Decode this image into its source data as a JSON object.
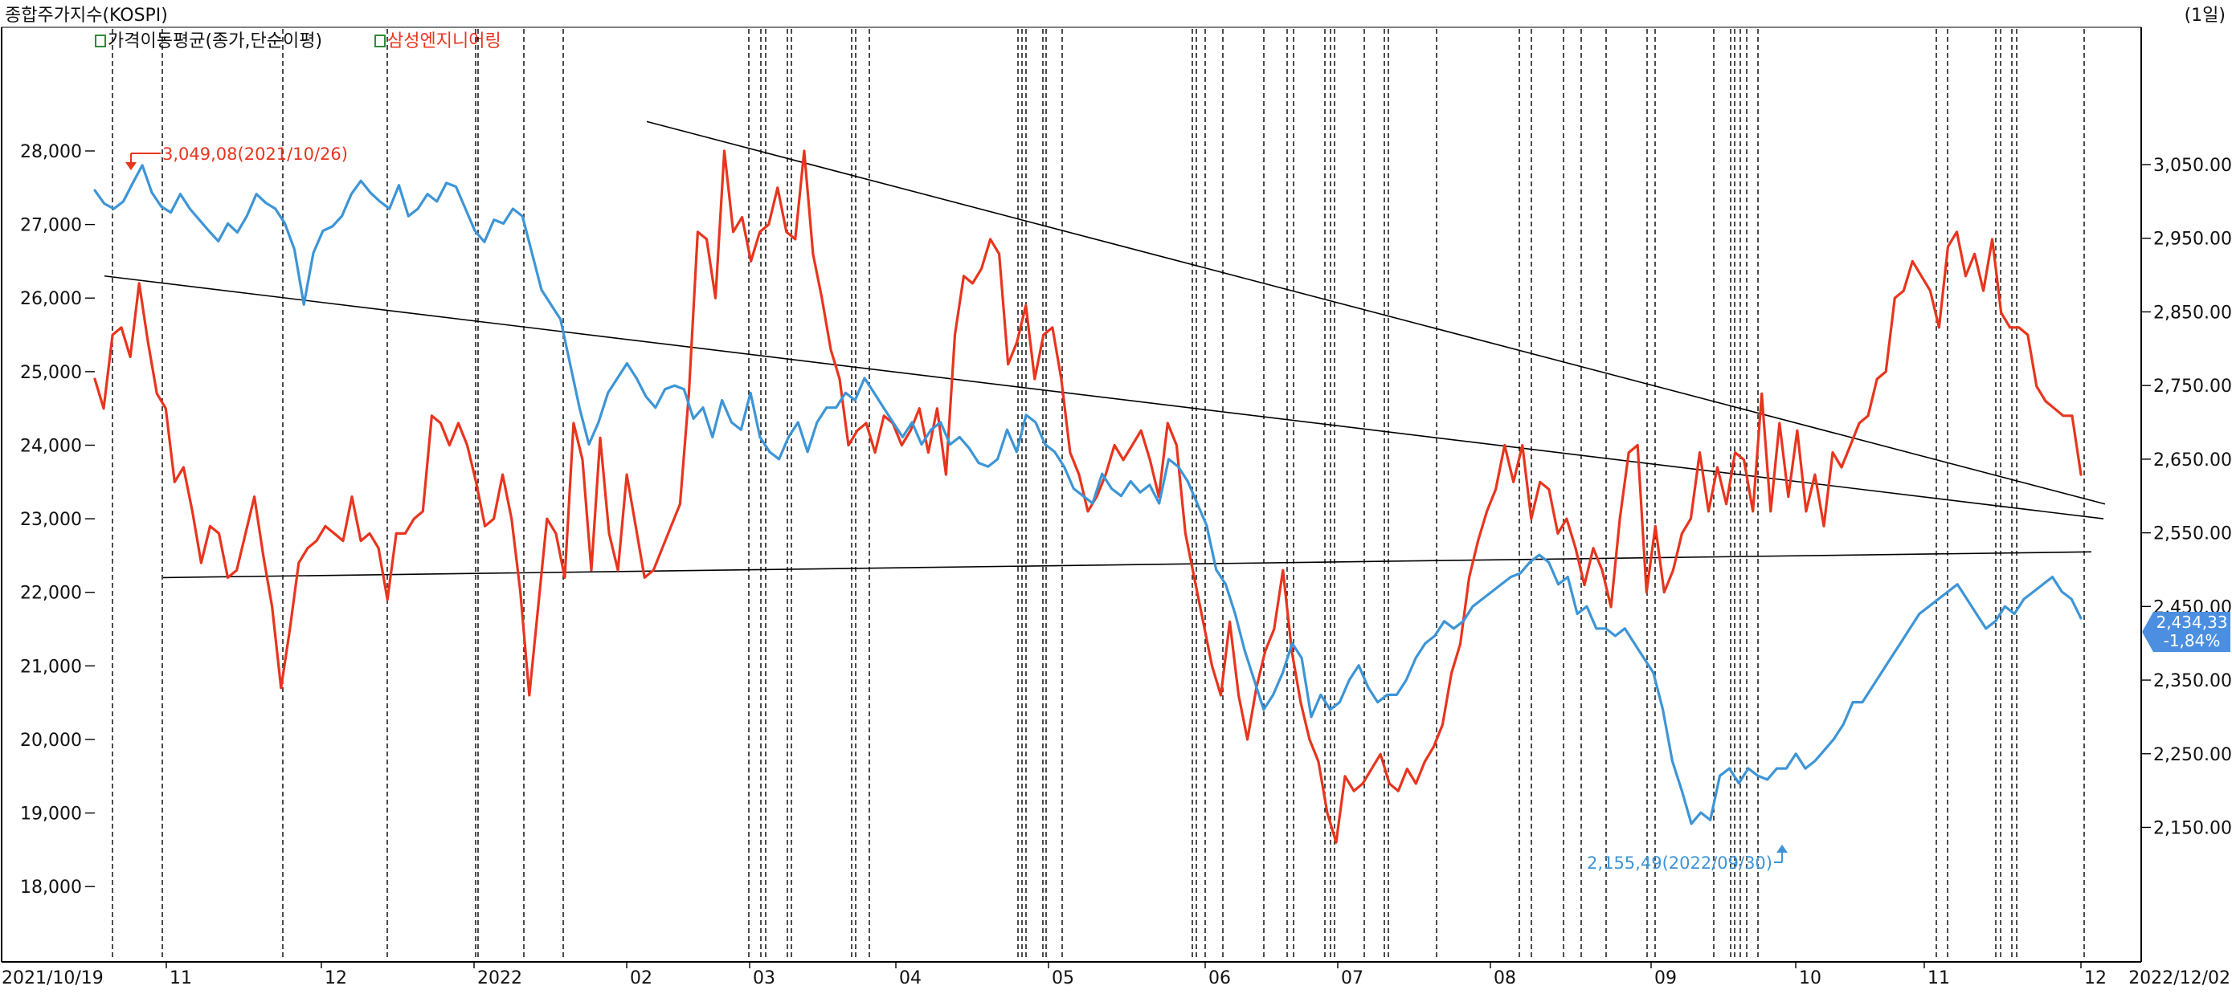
{
  "window": {
    "title": "종합주가지수(KOSPI)",
    "period": "(1일)"
  },
  "legend": [
    {
      "label": "가격이동평균(종가,단순이평)",
      "color": "#000000"
    },
    {
      "label": "삼성엔지니어링",
      "color": "#e8351e"
    }
  ],
  "chart_data": {
    "type": "line",
    "x_start": "2021/10/19",
    "x_end": "2022/12/02",
    "month_ticks": [
      "11",
      "12",
      "2022",
      "02",
      "03",
      "04",
      "05",
      "06",
      "07",
      "08",
      "09",
      "10",
      "11",
      "12"
    ],
    "left_axis": {
      "ticks": [
        "28,000",
        "27,000",
        "26,000",
        "25,000",
        "24,000",
        "23,000",
        "22,000",
        "21,000",
        "20,000",
        "19,000",
        "18,000"
      ],
      "range": [
        17500,
        29000
      ]
    },
    "right_axis": {
      "ticks": [
        "3,050.00",
        "2,950.00",
        "2,850.00",
        "2,750.00",
        "2,650.00",
        "2,550.00",
        "2,450.00",
        "2,350.00",
        "2,250.00",
        "2,150.00"
      ],
      "range": [
        2059,
        3157
      ]
    },
    "series": [
      {
        "name": "삼성엔지니어링",
        "axis": "left",
        "color": "#e8351e",
        "values": [
          24900,
          24500,
          25500,
          25600,
          25200,
          26200,
          25400,
          24700,
          24500,
          23500,
          23700,
          23100,
          22400,
          22900,
          22800,
          22200,
          22300,
          22800,
          23300,
          22500,
          21800,
          20700,
          21500,
          22400,
          22600,
          22700,
          22900,
          22800,
          22700,
          23300,
          22700,
          22800,
          22600,
          21900,
          22800,
          22800,
          23000,
          23100,
          24400,
          24300,
          24000,
          24300,
          24000,
          23500,
          22900,
          23000,
          23600,
          23000,
          22000,
          20600,
          21800,
          23000,
          22800,
          22200,
          24300,
          23800,
          22300,
          24100,
          22800,
          22300,
          23600,
          22900,
          22200,
          22300,
          22600,
          22900,
          23200,
          24700,
          26900,
          26800,
          26000,
          28000,
          26900,
          27100,
          26500,
          26900,
          27000,
          27500,
          26900,
          26800,
          28000,
          26600,
          26000,
          25300,
          24900,
          24000,
          24200,
          24300,
          23900,
          24400,
          24300,
          24000,
          24200,
          24500,
          23900,
          24500,
          23600,
          25500,
          26300,
          26200,
          26400,
          26800,
          26600,
          25100,
          25400,
          25900,
          24900,
          25500,
          25600,
          24900,
          23900,
          23600,
          23100,
          23300,
          23600,
          24000,
          23800,
          24000,
          24200,
          23800,
          23300,
          24300,
          24000,
          22800,
          22200,
          21600,
          21000,
          20600,
          21600,
          20600,
          20000,
          20700,
          21200,
          21500,
          22300,
          21200,
          20500,
          20000,
          19700,
          19000,
          18600,
          19500,
          19300,
          19400,
          19600,
          19800,
          19400,
          19300,
          19600,
          19400,
          19700,
          19900,
          20200,
          20900,
          21300,
          22200,
          22700,
          23100,
          23400,
          24000,
          23500,
          24000,
          23000,
          23500,
          23400,
          22800,
          23000,
          22600,
          22100,
          22600,
          22300,
          21800,
          23000,
          23900,
          24000,
          22000,
          22900,
          22000,
          22300,
          22800,
          23000,
          23900,
          23100,
          23700,
          23200,
          23900,
          23800,
          23100,
          24700,
          23100,
          24300,
          23300,
          24200,
          23100,
          23600,
          22900,
          23900,
          23700,
          24000,
          24300,
          24400,
          24900,
          25000,
          26000,
          26100,
          26500,
          26300,
          26100,
          25600,
          26700,
          26900,
          26300,
          26600,
          26100,
          26800,
          25800,
          25600,
          25600,
          25500,
          24800,
          24600,
          24500,
          24400,
          24400,
          23600
        ]
      },
      {
        "name": "KOSPI",
        "axis": "right",
        "color": "#3d95d6",
        "values": [
          3015,
          2997,
          2990,
          3000,
          3025,
          3049,
          3012,
          2993,
          2985,
          3010,
          2990,
          2975,
          2960,
          2946,
          2970,
          2958,
          2980,
          3010,
          2998,
          2990,
          2970,
          2935,
          2860,
          2930,
          2960,
          2966,
          2980,
          3010,
          3028,
          3012,
          3000,
          2990,
          3022,
          2980,
          2990,
          3010,
          3000,
          3025,
          3020,
          2990,
          2960,
          2945,
          2975,
          2970,
          2990,
          2980,
          2930,
          2880,
          2860,
          2840,
          2780,
          2720,
          2670,
          2700,
          2740,
          2760,
          2780,
          2760,
          2735,
          2720,
          2745,
          2750,
          2745,
          2705,
          2720,
          2680,
          2730,
          2700,
          2690,
          2740,
          2680,
          2660,
          2650,
          2680,
          2700,
          2660,
          2700,
          2720,
          2720,
          2740,
          2730,
          2760,
          2740,
          2720,
          2700,
          2680,
          2700,
          2670,
          2690,
          2700,
          2670,
          2680,
          2665,
          2645,
          2640,
          2650,
          2690,
          2660,
          2710,
          2700,
          2670,
          2660,
          2640,
          2610,
          2600,
          2590,
          2630,
          2610,
          2600,
          2620,
          2605,
          2615,
          2590,
          2650,
          2640,
          2620,
          2590,
          2560,
          2500,
          2480,
          2440,
          2390,
          2350,
          2310,
          2330,
          2360,
          2400,
          2380,
          2300,
          2330,
          2310,
          2320,
          2350,
          2370,
          2340,
          2320,
          2330,
          2330,
          2350,
          2380,
          2400,
          2410,
          2430,
          2420,
          2430,
          2450,
          2460,
          2470,
          2480,
          2490,
          2495,
          2510,
          2520,
          2510,
          2480,
          2490,
          2440,
          2450,
          2420,
          2420,
          2410,
          2420,
          2400,
          2380,
          2360,
          2310,
          2240,
          2200,
          2155,
          2170,
          2160,
          2220,
          2230,
          2210,
          2230,
          2220,
          2215,
          2230,
          2230,
          2250,
          2230,
          2240,
          2255,
          2270,
          2290,
          2320,
          2320,
          2340,
          2360,
          2380,
          2400,
          2420,
          2440,
          2450,
          2460,
          2470,
          2480,
          2460,
          2440,
          2420,
          2430,
          2450,
          2440,
          2460,
          2470,
          2480,
          2490,
          2470,
          2460,
          2434
        ]
      }
    ],
    "trendlines": [
      {
        "from": [
          "2021/10/19",
          26300
        ],
        "to": [
          "2022/12/02",
          23000
        ],
        "axis": "left"
      },
      {
        "from": [
          "2021/11/15",
          22200
        ],
        "to": [
          "2022/12/02",
          22550
        ],
        "axis": "left"
      },
      {
        "from": [
          "2022/02/01",
          28400
        ],
        "to": [
          "2022/12/02",
          23200
        ],
        "axis": "left"
      }
    ],
    "annotations": [
      {
        "text": "3,049,08(2021/10/26)",
        "color": "#e8351e"
      },
      {
        "text": "2,155,49(2022/09/30)",
        "color": "#3d95d6"
      }
    ],
    "last_price_badge": {
      "lines": [
        "2,434,33",
        "-1,84%"
      ],
      "color": "#4c8fe0"
    }
  }
}
